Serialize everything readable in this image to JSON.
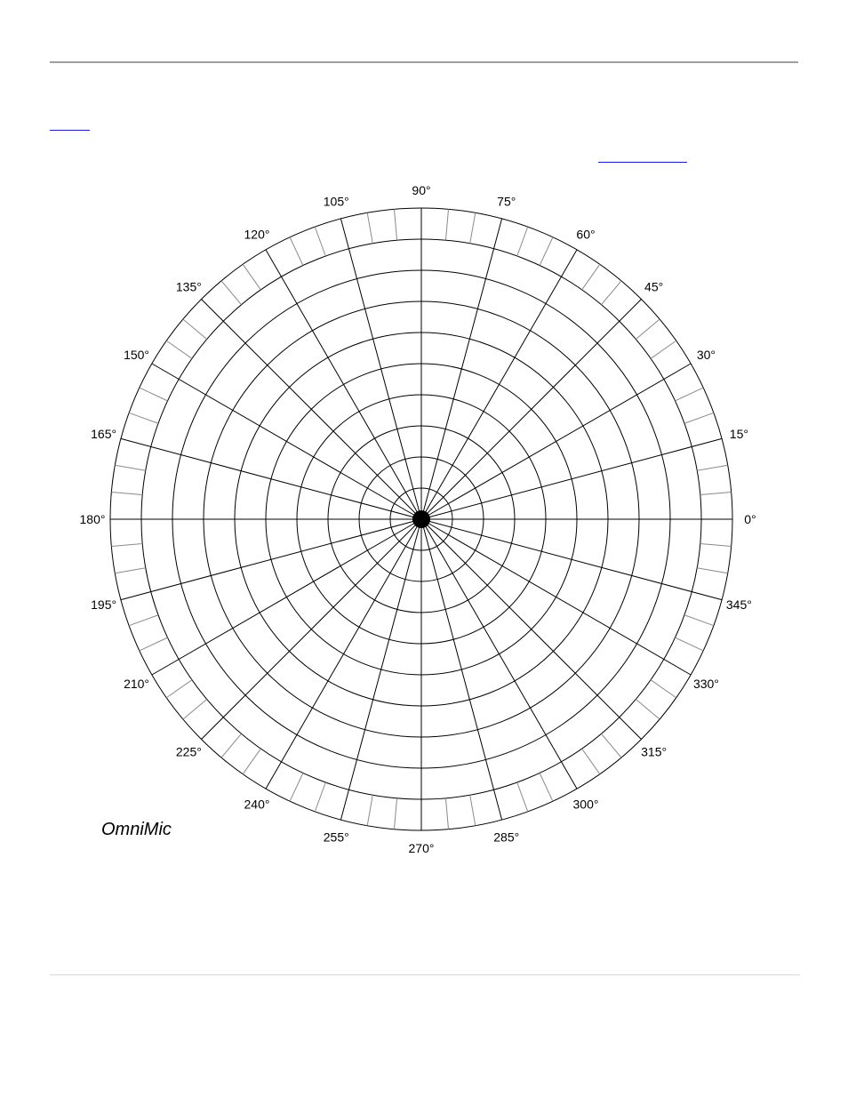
{
  "diagram": {
    "angle_labels": [
      "0°",
      "15°",
      "30°",
      "45°",
      "60°",
      "75°",
      "90°",
      "105°",
      "120°",
      "135°",
      "150°",
      "165°",
      "180°",
      "195°",
      "210°",
      "225°",
      "240°",
      "255°",
      "270°",
      "285°",
      "300°",
      "315°",
      "330°",
      "345°"
    ],
    "brand_label": "OmniMic",
    "ring_count": 10,
    "radial_step_deg": 15,
    "minor_tick_step_deg": 5,
    "line_color": "#000000",
    "minor_tick_color": "#8a8a8a",
    "hub_color": "#000000"
  }
}
